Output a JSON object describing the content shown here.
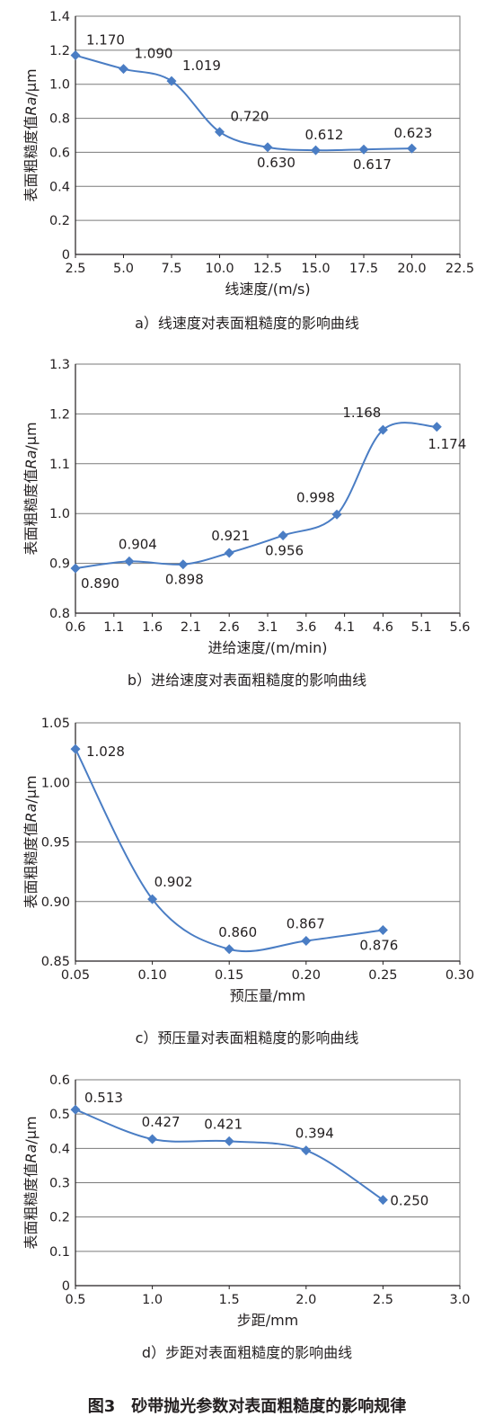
{
  "figure_title": "图3　砂带抛光参数对表面粗糙度的影响规律",
  "colors": {
    "series": "#4a7dc4",
    "grid": "#7a7a7a",
    "axis": "#231f20"
  },
  "chart_data": [
    {
      "type": "line",
      "caption": "a）线速度对表面粗糙度的影响曲线",
      "xlabel": "线速度/(m/s)",
      "ylabel_prefix": "表面粗糙度值",
      "ylabel_italic": "Ra",
      "ylabel_suffix": "/μm",
      "xlim": [
        2.5,
        22.5
      ],
      "ylim": [
        0,
        1.4
      ],
      "xticks": [
        "2.5",
        "5.0",
        "7.5",
        "10.0",
        "12.5",
        "15.0",
        "17.5",
        "20.0",
        "22.5"
      ],
      "yticks": [
        "0",
        "0.2",
        "0.4",
        "0.6",
        "0.8",
        "1.0",
        "1.2",
        "1.4"
      ],
      "grid": "horizontal",
      "smooth": true,
      "x": [
        2.5,
        5.0,
        7.5,
        10.0,
        12.5,
        15.0,
        17.5,
        20.0
      ],
      "y": [
        1.17,
        1.09,
        1.019,
        0.72,
        0.63,
        0.612,
        0.617,
        0.623
      ],
      "labels": [
        "1.170",
        "1.090",
        "1.019",
        "0.720",
        "0.630",
        "0.612",
        "0.617",
        "0.623"
      ]
    },
    {
      "type": "line",
      "caption": "b）进给速度对表面粗糙度的影响曲线",
      "xlabel": "进给速度/(m/min)",
      "ylabel_prefix": "表面粗糙度值",
      "ylabel_italic": "Ra",
      "ylabel_suffix": "/μm",
      "xlim": [
        0.6,
        5.6
      ],
      "ylim": [
        0.8,
        1.3
      ],
      "xticks": [
        "0.6",
        "1.1",
        "1.6",
        "2.1",
        "2.6",
        "3.1",
        "3.6",
        "4.1",
        "4.6",
        "5.1",
        "5.6"
      ],
      "yticks": [
        "0.8",
        "0.9",
        "1.0",
        "1.1",
        "1.2",
        "1.3"
      ],
      "grid": "horizontal",
      "smooth": true,
      "x": [
        0.6,
        1.3,
        2.0,
        2.6,
        3.3,
        4.0,
        4.6,
        5.3
      ],
      "y": [
        0.89,
        0.904,
        0.898,
        0.921,
        0.956,
        0.998,
        1.168,
        1.174
      ],
      "labels": [
        "0.890",
        "0.904",
        "0.898",
        "0.921",
        "0.956",
        "0.998",
        "1.168",
        "1.174"
      ]
    },
    {
      "type": "line",
      "caption": "c）预压量对表面粗糙度的影响曲线",
      "xlabel": "预压量/mm",
      "ylabel_prefix": "表面粗糙度值",
      "ylabel_italic": "Ra",
      "ylabel_suffix": "/μm",
      "xlim": [
        0.05,
        0.3
      ],
      "ylim": [
        0.85,
        1.05
      ],
      "xticks": [
        "0.05",
        "0.10",
        "0.15",
        "0.20",
        "0.25",
        "0.30"
      ],
      "yticks": [
        "0.85",
        "0.90",
        "0.95",
        "1.00",
        "1.05"
      ],
      "grid": "horizontal",
      "smooth": true,
      "x": [
        0.05,
        0.1,
        0.15,
        0.2,
        0.25
      ],
      "y": [
        1.028,
        0.902,
        0.86,
        0.867,
        0.876
      ],
      "labels": [
        "1.028",
        "0.902",
        "0.860",
        "0.867",
        "0.876"
      ]
    },
    {
      "type": "line",
      "caption": "d）步距对表面粗糙度的影响曲线",
      "xlabel": "步距/mm",
      "ylabel_prefix": "表面粗糙度值",
      "ylabel_italic": "Ra",
      "ylabel_suffix": "/μm",
      "xlim": [
        0.5,
        3.0
      ],
      "ylim": [
        0,
        0.6
      ],
      "xticks": [
        "0.5",
        "1.0",
        "1.5",
        "2.0",
        "2.5",
        "3.0"
      ],
      "yticks": [
        "0",
        "0.1",
        "0.2",
        "0.3",
        "0.4",
        "0.5",
        "0.6"
      ],
      "grid": "horizontal",
      "smooth": true,
      "x": [
        0.5,
        1.0,
        1.5,
        2.0,
        2.5
      ],
      "y": [
        0.513,
        0.427,
        0.421,
        0.394,
        0.25
      ],
      "labels": [
        "0.513",
        "0.427",
        "0.421",
        "0.394",
        "0.250"
      ]
    }
  ]
}
